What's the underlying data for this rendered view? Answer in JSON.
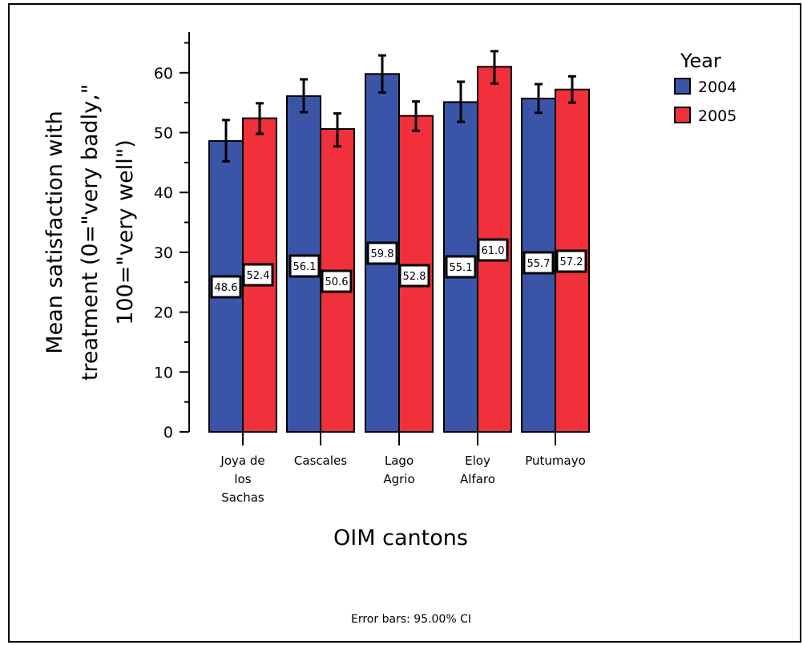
{
  "chart_data": {
    "type": "bar",
    "categories": [
      [
        "Joya de",
        "los",
        "Sachas"
      ],
      [
        "Cascales"
      ],
      [
        "Lago",
        "Agrio"
      ],
      [
        "Eloy",
        "Alfaro"
      ],
      [
        "Putumayo"
      ]
    ],
    "series": [
      {
        "name": "2004",
        "color": "#3a55a8",
        "values": [
          48.6,
          56.1,
          59.8,
          55.1,
          55.7
        ],
        "value_labels": [
          "48.6",
          "56.1",
          "59.8",
          "55.1",
          "55.7"
        ],
        "ci_low": [
          45.2,
          53.4,
          56.7,
          51.8,
          53.3
        ],
        "ci_high": [
          52.1,
          58.9,
          62.9,
          58.5,
          58.1
        ]
      },
      {
        "name": "2005",
        "color": "#f0303a",
        "values": [
          52.4,
          50.6,
          52.8,
          61.0,
          57.2
        ],
        "value_labels": [
          "52.4",
          "50.6",
          "52.8",
          "61.0",
          "57.2"
        ],
        "ci_low": [
          49.8,
          47.7,
          50.3,
          58.2,
          55.0
        ],
        "ci_high": [
          54.9,
          53.2,
          55.2,
          63.6,
          59.4
        ]
      }
    ],
    "ylim": [
      0,
      65
    ],
    "yticks": [
      "0",
      "10",
      "20",
      "30",
      "40",
      "50",
      "60"
    ],
    "ylabel_lines": [
      "Mean satisfaction with",
      "treatment (0=\"very badly,\"",
      "100=\"very well\")"
    ],
    "xlabel": "OIM cantons",
    "legend_title": "Year",
    "legend_position": "top-right",
    "footnote": "Error bars: 95.00% CI",
    "grid": false
  }
}
